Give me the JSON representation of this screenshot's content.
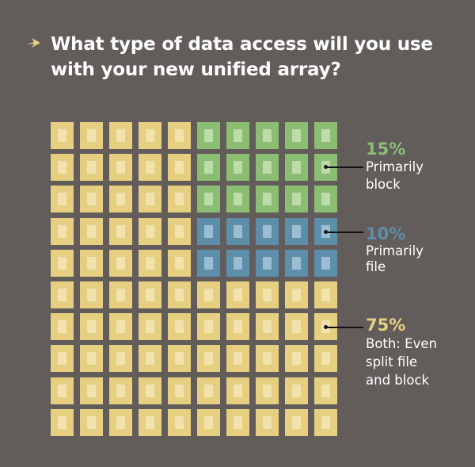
{
  "header": {
    "title": "What type of data access will you use with your new unified array?",
    "arrow_icon": "right-arrow-icon"
  },
  "colors": {
    "background": "#625d5b",
    "both": "#e6cf80",
    "block": "#8bbe72",
    "file": "#5d8eaa"
  },
  "legend": {
    "block": {
      "pct": "15%",
      "desc_line1": "Primarily",
      "desc_line2": "block"
    },
    "file": {
      "pct": "10%",
      "desc_line1": "Primarily",
      "desc_line2": "file"
    },
    "both": {
      "pct": "75%",
      "desc_line1": "Both: Even",
      "desc_line2": "split file",
      "desc_line3": "and block"
    }
  },
  "chart_data": {
    "type": "waffle",
    "title": "What type of data access will you use with your new unified array?",
    "grid": {
      "rows": 10,
      "cols": 10,
      "total": 100
    },
    "categories": [
      "Primarily block",
      "Primarily file",
      "Both: Even split file and block"
    ],
    "values": [
      15,
      10,
      75
    ],
    "unit": "%",
    "colors": [
      "#8bbe72",
      "#5d8eaa",
      "#e6cf80"
    ],
    "layout": {
      "block_cells": "rows 1-3, cols 6-10",
      "file_cells": "rows 4-5, cols 6-10",
      "both_cells": "all remaining cells"
    },
    "legend_position": "right"
  }
}
